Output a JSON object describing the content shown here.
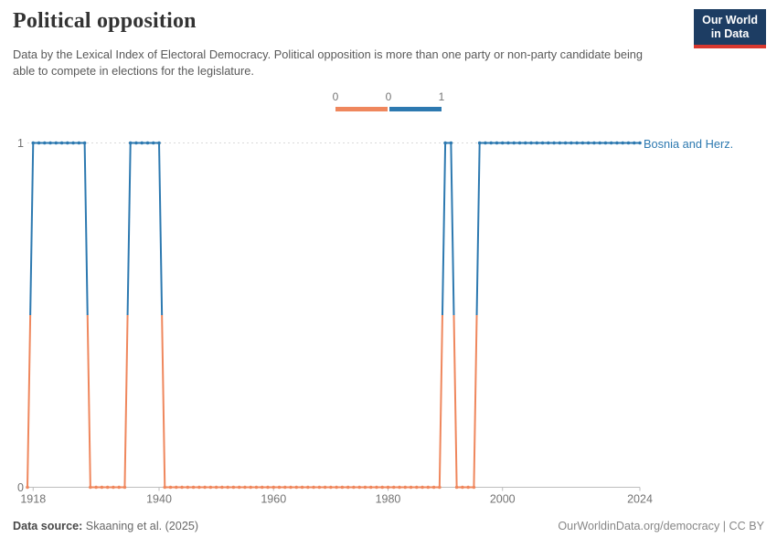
{
  "header": {
    "title": "Political opposition",
    "subtitle": "Data by the Lexical Index of Electoral Democracy. Political opposition is more than one party or non-party candidate being able to compete in elections for the legislature."
  },
  "logo": {
    "line1": "Our World",
    "line2": "in Data"
  },
  "legend": {
    "ticks": [
      "0",
      "0",
      "1"
    ]
  },
  "chart_data": {
    "type": "line",
    "title": "Political opposition",
    "entity": "Bosnia and Herz.",
    "x_range": [
      1917,
      2024
    ],
    "ylim": [
      0,
      1
    ],
    "x_ticks": [
      1918,
      1940,
      1960,
      1980,
      2000,
      2024
    ],
    "y_ticks": [
      1,
      0
    ],
    "grid": "dashed horizontal gridline at y=1 only",
    "legend_position": "top-center",
    "colors": {
      "0": "#ef875d",
      "1": "#2d79b0"
    },
    "runs": [
      {
        "from": 1917,
        "to": 1917,
        "value": 0
      },
      {
        "from": 1918,
        "to": 1927,
        "value": 1
      },
      {
        "from": 1928,
        "to": 1934,
        "value": 0
      },
      {
        "from": 1935,
        "to": 1940,
        "value": 1
      },
      {
        "from": 1941,
        "to": 1989,
        "value": 0
      },
      {
        "from": 1990,
        "to": 1991,
        "value": 1
      },
      {
        "from": 1992,
        "to": 1995,
        "value": 0
      },
      {
        "from": 1996,
        "to": 2024,
        "value": 1
      }
    ]
  },
  "footer": {
    "source_label": "Data source:",
    "source_value": " Skaaning et al. (2025)",
    "credit": "OurWorldinData.org/democracy | CC BY"
  }
}
